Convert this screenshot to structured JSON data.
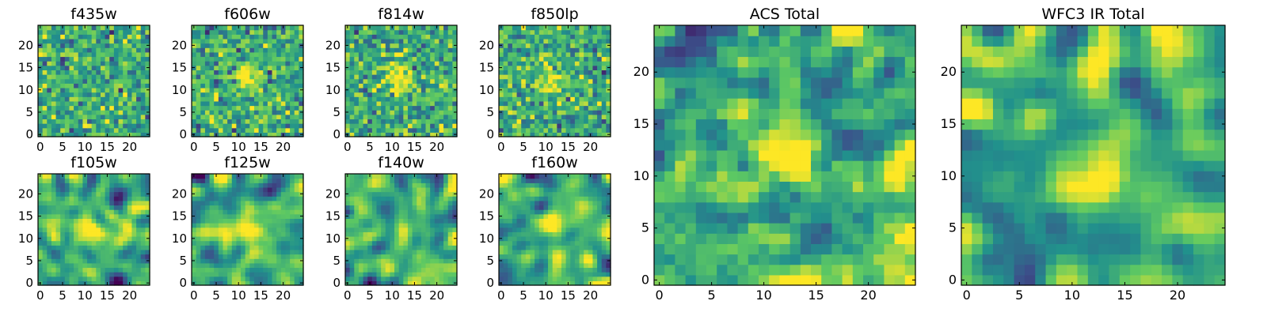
{
  "figure": {
    "description_note": "8 single-band 25x25 pixel cutouts plus ACS and WFC3 IR stacked totals"
  },
  "colormap": {
    "name": "viridis-like",
    "stops": [
      "#440154",
      "#3b528b",
      "#21918c",
      "#5ec962",
      "#fde725"
    ]
  },
  "chart_data": [
    {
      "type": "heatmap",
      "title": "f435w",
      "grid": [
        25,
        25
      ],
      "xlim": [
        -0.5,
        24.5
      ],
      "ylim": [
        -0.5,
        24.5
      ],
      "xticks": [
        0,
        5,
        10,
        15,
        20
      ],
      "yticks": [
        0,
        5,
        10,
        15,
        20
      ],
      "source_center": null,
      "noise_level": "high"
    },
    {
      "type": "heatmap",
      "title": "f606w",
      "grid": [
        25,
        25
      ],
      "xlim": [
        -0.5,
        24.5
      ],
      "ylim": [
        -0.5,
        24.5
      ],
      "xticks": [
        0,
        5,
        10,
        15,
        20
      ],
      "yticks": [
        0,
        5,
        10,
        15,
        20
      ],
      "source_center": [
        12,
        13
      ],
      "noise_level": "high"
    },
    {
      "type": "heatmap",
      "title": "f814w",
      "grid": [
        25,
        25
      ],
      "xlim": [
        -0.5,
        24.5
      ],
      "ylim": [
        -0.5,
        24.5
      ],
      "xticks": [
        0,
        5,
        10,
        15,
        20
      ],
      "yticks": [
        0,
        5,
        10,
        15,
        20
      ],
      "source_center": [
        12,
        13
      ],
      "noise_level": "high"
    },
    {
      "type": "heatmap",
      "title": "f850lp",
      "grid": [
        25,
        25
      ],
      "xlim": [
        -0.5,
        24.5
      ],
      "ylim": [
        -0.5,
        24.5
      ],
      "xticks": [
        0,
        5,
        10,
        15,
        20
      ],
      "yticks": [
        0,
        5,
        10,
        15,
        20
      ],
      "source_center": [
        12,
        12
      ],
      "noise_level": "high"
    },
    {
      "type": "heatmap",
      "title": "f105w",
      "grid": [
        25,
        25
      ],
      "xlim": [
        -0.5,
        24.5
      ],
      "ylim": [
        -0.5,
        24.5
      ],
      "xticks": [
        0,
        5,
        10,
        15,
        20
      ],
      "yticks": [
        0,
        5,
        10,
        15,
        20
      ],
      "source_center": [
        12,
        12
      ],
      "noise_level": "smooth"
    },
    {
      "type": "heatmap",
      "title": "f125w",
      "grid": [
        25,
        25
      ],
      "xlim": [
        -0.5,
        24.5
      ],
      "ylim": [
        -0.5,
        24.5
      ],
      "xticks": [
        0,
        5,
        10,
        15,
        20
      ],
      "yticks": [
        0,
        5,
        10,
        15,
        20
      ],
      "source_center": [
        12,
        12
      ],
      "noise_level": "smooth"
    },
    {
      "type": "heatmap",
      "title": "f140w",
      "grid": [
        25,
        25
      ],
      "xlim": [
        -0.5,
        24.5
      ],
      "ylim": [
        -0.5,
        24.5
      ],
      "xticks": [
        0,
        5,
        10,
        15,
        20
      ],
      "yticks": [
        0,
        5,
        10,
        15,
        20
      ],
      "source_center": [
        12,
        12
      ],
      "noise_level": "smooth"
    },
    {
      "type": "heatmap",
      "title": "f160w",
      "grid": [
        25,
        25
      ],
      "xlim": [
        -0.5,
        24.5
      ],
      "ylim": [
        -0.5,
        24.5
      ],
      "xticks": [
        0,
        5,
        10,
        15,
        20
      ],
      "yticks": [
        0,
        5,
        10,
        15,
        20
      ],
      "source_center": [
        12,
        13
      ],
      "noise_level": "smooth"
    },
    {
      "type": "heatmap",
      "title": "ACS Total",
      "grid": [
        25,
        25
      ],
      "xlim": [
        -0.5,
        24.5
      ],
      "ylim": [
        -0.5,
        24.5
      ],
      "xticks": [
        0,
        5,
        10,
        15,
        20
      ],
      "yticks": [
        0,
        5,
        10,
        15,
        20
      ],
      "source_center": [
        12,
        12
      ],
      "noise_level": "medium"
    },
    {
      "type": "heatmap",
      "title": "WFC3 IR Total",
      "grid": [
        25,
        25
      ],
      "xlim": [
        -0.5,
        24.5
      ],
      "ylim": [
        -0.5,
        24.5
      ],
      "xticks": [
        0,
        5,
        10,
        15,
        20
      ],
      "yticks": [
        0,
        5,
        10,
        15,
        20
      ],
      "source_center": [
        12,
        12
      ],
      "noise_level": "smooth"
    }
  ]
}
